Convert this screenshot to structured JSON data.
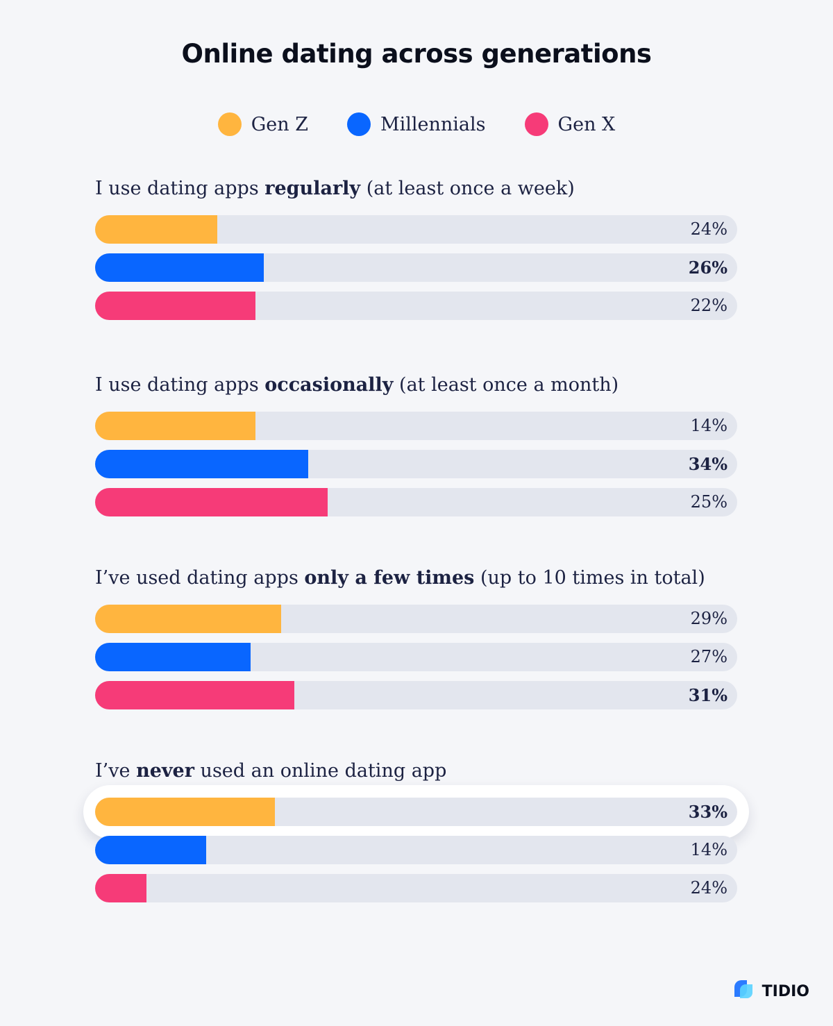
{
  "title": "Online dating across generations",
  "legend": [
    {
      "label": "Gen Z",
      "color": "#ffb53f"
    },
    {
      "label": "Millennials",
      "color": "#0966ff"
    },
    {
      "label": "Gen X",
      "color": "#f63b78"
    }
  ],
  "logo_text": "TIDIO",
  "chart_data": {
    "type": "bar",
    "orientation": "horizontal",
    "title": "Online dating across generations",
    "series_names": [
      "Gen Z",
      "Millennials",
      "Gen X"
    ],
    "xlim": [
      0,
      100
    ],
    "groups": [
      {
        "label_pre": "I use dating apps ",
        "label_bold": "regularly",
        "label_post": " (at least once a week)",
        "values": [
          24,
          26,
          22
        ],
        "value_labels": [
          "24%",
          "26%",
          "22%"
        ],
        "bold_index": 1,
        "fills": [
          0.19,
          0.263,
          0.25
        ]
      },
      {
        "label_pre": "I use dating apps ",
        "label_bold": "occasionally",
        "label_post": " (at least once a month)",
        "values": [
          14,
          34,
          25
        ],
        "value_labels": [
          "14%",
          "34%",
          "25%"
        ],
        "bold_index": 1,
        "fills": [
          0.25,
          0.332,
          0.362
        ]
      },
      {
        "label_pre": "I’ve used dating apps ",
        "label_bold": "only a few times",
        "label_post": " (up to 10 times in total)",
        "values": [
          29,
          27,
          31
        ],
        "value_labels": [
          "29%",
          "27%",
          "31%"
        ],
        "bold_index": 2,
        "fills": [
          0.29,
          0.242,
          0.31
        ]
      },
      {
        "label_pre": "I’ve ",
        "label_bold": "never",
        "label_post": " used an online dating app",
        "values": [
          33,
          14,
          24
        ],
        "value_labels": [
          "33%",
          "14%",
          "24%"
        ],
        "bold_index": 0,
        "highlight_index": 0,
        "fills": [
          0.28,
          0.173,
          0.08
        ]
      }
    ]
  }
}
